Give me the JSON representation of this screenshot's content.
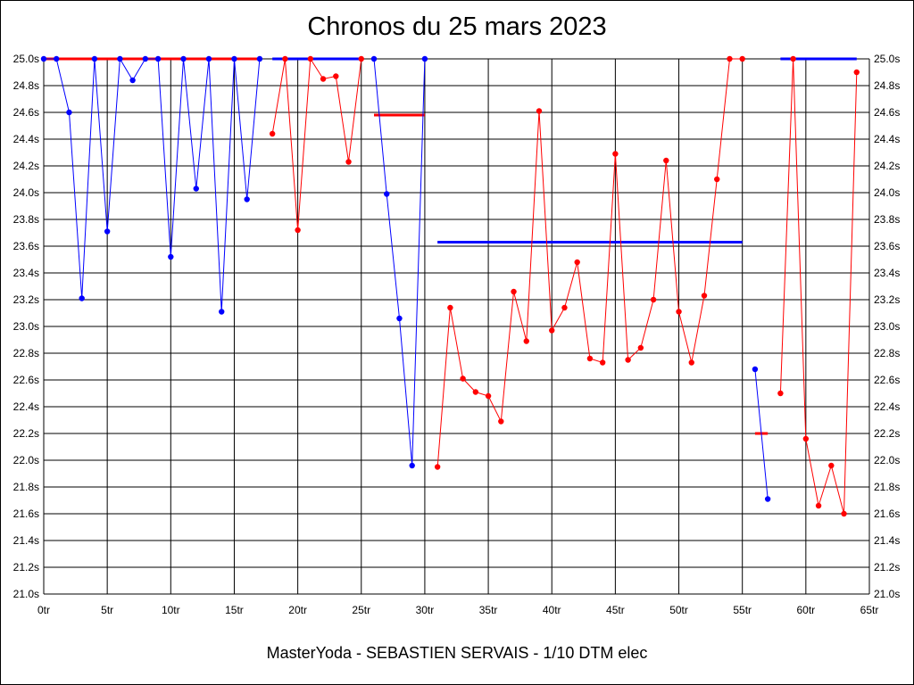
{
  "chart_data": {
    "type": "line",
    "title": "Chronos du 25 mars 2023",
    "subtitle": "MasterYoda - SEBASTIEN SERVAIS - 1/10 DTM elec",
    "x_ticks": [
      "0tr",
      "5tr",
      "10tr",
      "15tr",
      "20tr",
      "25tr",
      "30tr",
      "35tr",
      "40tr",
      "45tr",
      "50tr",
      "55tr",
      "60tr",
      "65tr"
    ],
    "y_ticks": [
      "25.0s",
      "24.8s",
      "24.6s",
      "24.4s",
      "24.2s",
      "24.0s",
      "23.8s",
      "23.6s",
      "23.4s",
      "23.2s",
      "23.0s",
      "22.8s",
      "22.6s",
      "22.4s",
      "22.2s",
      "22.0s",
      "21.8s",
      "21.6s",
      "21.4s",
      "21.2s",
      "21.0s"
    ],
    "xlim": [
      0,
      65
    ],
    "ylim": [
      21.0,
      25.0
    ],
    "grid": true,
    "colors": {
      "blue": "#0000ff",
      "red": "#ff0000",
      "grid": "#000000"
    },
    "segments": [
      {
        "color": "blue",
        "x": [
          0,
          1,
          2,
          3,
          4,
          5,
          6,
          7,
          8,
          9,
          10,
          11,
          12,
          13,
          14,
          15,
          16,
          17
        ],
        "y": [
          25.0,
          25.0,
          24.6,
          23.21,
          25.0,
          23.71,
          25.0,
          24.84,
          25.0,
          25.0,
          23.52,
          25.0,
          24.03,
          25.0,
          23.11,
          25.0,
          23.95,
          25.0
        ]
      },
      {
        "color": "red",
        "x": [
          18,
          19,
          20,
          21,
          22,
          23,
          24,
          25
        ],
        "y": [
          24.44,
          25.0,
          23.72,
          25.0,
          24.85,
          24.87,
          24.23,
          25.0
        ]
      },
      {
        "color": "blue",
        "x": [
          26,
          27,
          28,
          29,
          30
        ],
        "y": [
          25.0,
          23.99,
          23.06,
          21.96,
          25.0
        ]
      },
      {
        "color": "red",
        "x": [
          31,
          32,
          33,
          34,
          35,
          36,
          37,
          38,
          39,
          40,
          41,
          42,
          43,
          44,
          45,
          46,
          47,
          48,
          49,
          50,
          51,
          52,
          53,
          54,
          55
        ],
        "y": [
          21.95,
          23.14,
          22.61,
          22.51,
          22.48,
          22.29,
          23.26,
          22.89,
          24.61,
          22.97,
          23.14,
          23.48,
          22.76,
          22.73,
          24.29,
          22.75,
          22.84,
          23.2,
          24.24,
          23.11,
          22.73,
          23.23,
          24.1,
          25.0,
          25.0
        ]
      },
      {
        "color": "blue",
        "x": [
          56,
          57
        ],
        "y": [
          22.68,
          21.71
        ]
      },
      {
        "color": "red",
        "x": [
          58,
          59,
          60,
          61,
          62,
          63,
          64
        ],
        "y": [
          22.5,
          25.0,
          22.16,
          21.66,
          21.96,
          21.6,
          24.9
        ]
      }
    ],
    "averages": [
      {
        "color": "red",
        "x": [
          0,
          17
        ],
        "y": 25.0
      },
      {
        "color": "blue",
        "x": [
          18,
          25
        ],
        "y": 25.0
      },
      {
        "color": "red",
        "x": [
          26,
          30
        ],
        "y": 24.58
      },
      {
        "color": "blue",
        "x": [
          31,
          55
        ],
        "y": 23.63
      },
      {
        "color": "red",
        "x": [
          56,
          57
        ],
        "y": 22.2
      },
      {
        "color": "blue",
        "x": [
          58,
          64
        ],
        "y": 25.0
      }
    ]
  }
}
